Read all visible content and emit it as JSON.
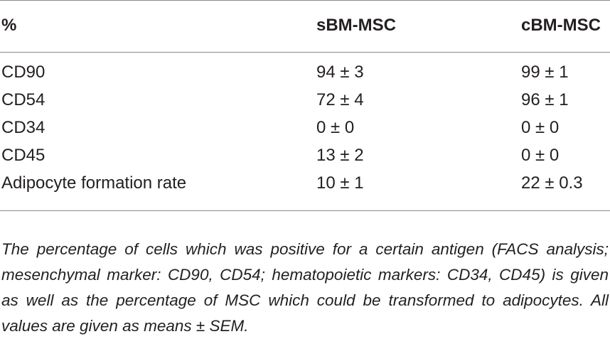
{
  "table": {
    "headers": [
      "%",
      "sBM-MSC",
      "cBM-MSC"
    ],
    "rows": [
      [
        "CD90",
        "94 ± 3",
        "99 ± 1"
      ],
      [
        "CD54",
        "72 ± 4",
        "96 ± 1"
      ],
      [
        "CD34",
        "0 ± 0",
        "0 ± 0"
      ],
      [
        "CD45",
        "13 ± 2",
        "0 ± 0"
      ],
      [
        "Adipocyte formation rate",
        "10 ± 1",
        "22 ± 0.3"
      ]
    ]
  },
  "footnote": "The percentage of cells which was positive for a certain antigen (FACS analysis; mesenchymal marker: CD90, CD54; hematopoietic markers: CD34, CD45) is given as well as the percentage of MSC which could be transformed to adipocytes. All values are given as means ± SEM."
}
